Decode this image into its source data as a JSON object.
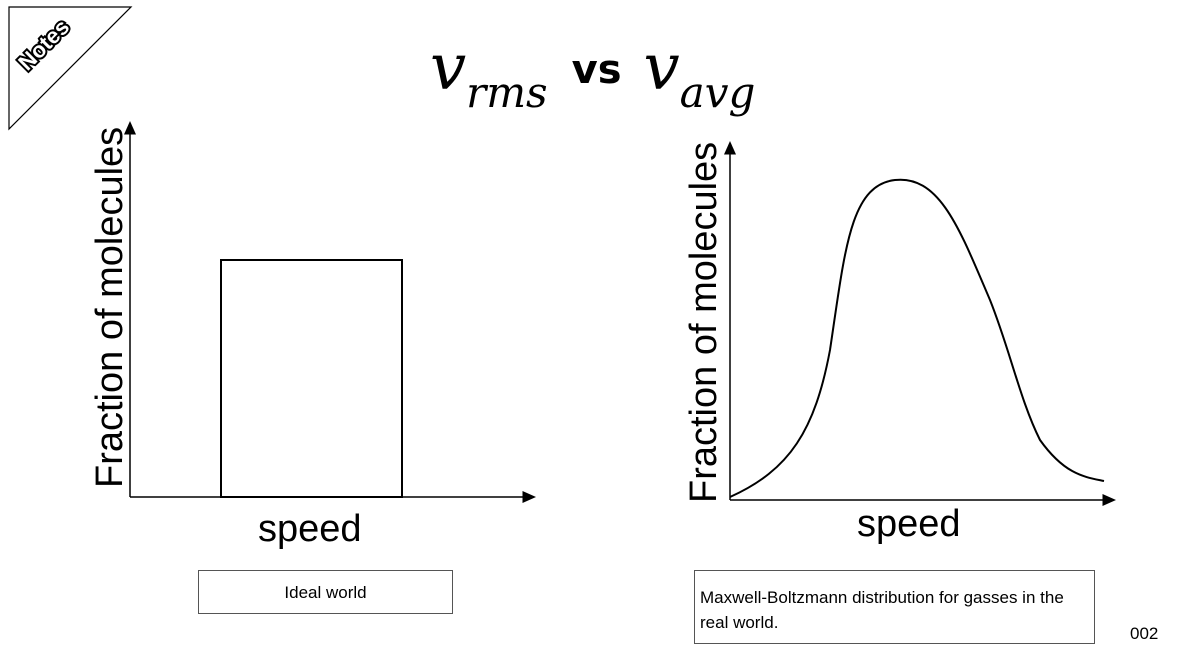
{
  "notes_tab": {
    "label": "Notes"
  },
  "title": {
    "v1": "v",
    "sub1": "rms",
    "vs": "vs",
    "v2": "v",
    "sub2": "avg"
  },
  "left_panel": {
    "ylabel": "Fraction of molecules",
    "xlabel": "speed",
    "caption": "Ideal world"
  },
  "right_panel": {
    "ylabel": "Fraction of molecules",
    "xlabel": "speed",
    "caption": "Maxwell-Boltzmann distribution for gasses in the real world."
  },
  "slide_number": "002"
}
